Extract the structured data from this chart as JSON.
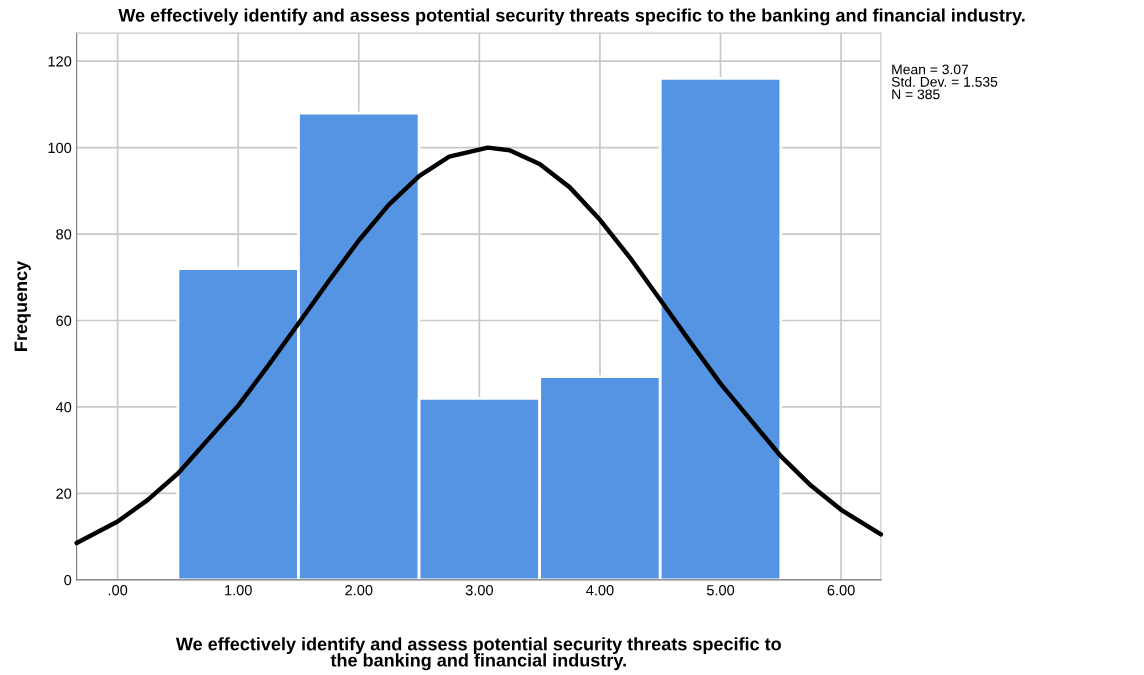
{
  "chart_data": {
    "type": "histogram",
    "title": "We effectively identify and assess potential security threats specific to the banking and financial industry.",
    "xlabel": "We effectively identify and assess potential security threats specific to\nthe banking and financial industry.",
    "ylabel": "Frequency",
    "bins": [
      0.5,
      1.5,
      2.5,
      3.5,
      4.5,
      5.5
    ],
    "values": [
      72,
      108,
      42,
      47,
      116
    ],
    "color": "#5594e3",
    "series": [
      {
        "type": "line",
        "color": "#000000",
        "x": [
          -0.34,
          0,
          0.25,
          0.5,
          1,
          1.25,
          1.5,
          1.75,
          2,
          2.25,
          2.5,
          2.75,
          3.07,
          3.25,
          3.5,
          3.75,
          4,
          4.25,
          4.5,
          4.75,
          5,
          5.5,
          5.75,
          6,
          6.33
        ],
        "values": [
          8.5,
          13.5,
          18.5,
          24.6,
          40.3,
          49.6,
          59.3,
          69.1,
          78.5,
          86.8,
          93.4,
          97.9,
          100,
          99.4,
          96.2,
          90.8,
          83.3,
          74.5,
          64.8,
          55.0,
          45.4,
          28.6,
          21.8,
          16.2,
          10.5
        ]
      }
    ],
    "xlim": [
      -0.34,
      6.33
    ],
    "xticks": [
      {
        "value": 0,
        "label": ".00"
      },
      {
        "value": 1,
        "label": "1.00"
      },
      {
        "value": 2,
        "label": "2.00"
      },
      {
        "value": 3,
        "label": "3.00"
      },
      {
        "value": 4,
        "label": "4.00"
      },
      {
        "value": 5,
        "label": "5.00"
      },
      {
        "value": 6,
        "label": "6.00"
      }
    ],
    "ylim": [
      0,
      126.5
    ],
    "yticks": [
      0,
      20,
      40,
      60,
      80,
      100,
      120
    ],
    "grid": true,
    "annotations": [
      "Mean = 3.07\nStd. Dev. = 1.535\nN = 385"
    ]
  }
}
